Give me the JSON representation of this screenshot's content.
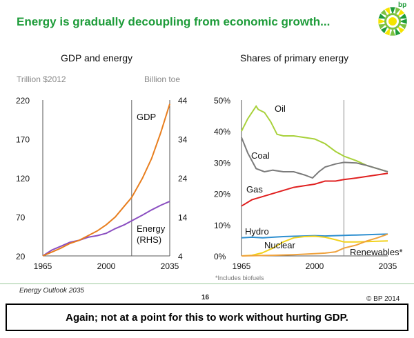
{
  "header": {
    "title": "Energy is gradually decoupling from economic growth...",
    "logo_text": "bp",
    "logo_icon": "bp-helios-icon"
  },
  "colors": {
    "green": "#1e9c3a",
    "gdp": "#e87e1e",
    "energy": "#8b4fc1",
    "oil": "#a8d13a",
    "coal": "#7b7b7b",
    "gas": "#e02020",
    "hydro": "#2e8fd0",
    "nuclear": "#f2d21c",
    "renewables": "#f0a23c"
  },
  "chart_data": [
    {
      "type": "line",
      "title": "GDP and energy",
      "left_axis_unit": "Trillion $2012",
      "right_axis_unit": "Billion toe",
      "x_ticks": [
        "1965",
        "2000",
        "2035"
      ],
      "xlim": [
        1965,
        2035
      ],
      "ylim_left": [
        20,
        220
      ],
      "ylim_right": [
        4,
        44
      ],
      "y_ticks_left": [
        "20",
        "70",
        "120",
        "170",
        "220"
      ],
      "y_ticks_right": [
        "4",
        "14",
        "24",
        "34",
        "44"
      ],
      "vline_x": 2014,
      "series": [
        {
          "name": "GDP",
          "axis": "left",
          "x": [
            1965,
            1970,
            1975,
            1980,
            1985,
            1990,
            1995,
            2000,
            2005,
            2010,
            2014,
            2020,
            2025,
            2030,
            2035
          ],
          "values": [
            20,
            25,
            30,
            36,
            40,
            46,
            52,
            60,
            70,
            84,
            95,
            120,
            145,
            178,
            215
          ]
        },
        {
          "name": "Energy (RHS)",
          "axis": "right",
          "x": [
            1965,
            1970,
            1975,
            1980,
            1985,
            1990,
            1995,
            2000,
            2005,
            2010,
            2014,
            2020,
            2025,
            2030,
            2035
          ],
          "values": [
            4,
            5.5,
            6.5,
            7.5,
            8,
            8.8,
            9.2,
            9.8,
            11,
            12,
            13,
            14.5,
            15.8,
            17,
            18
          ]
        }
      ],
      "labels": {
        "gdp": "GDP",
        "energy_line1": "Energy",
        "energy_line2": "(RHS)"
      }
    },
    {
      "type": "line",
      "title": "Shares of primary energy",
      "x_ticks": [
        "1965",
        "2000",
        "2035"
      ],
      "xlim": [
        1965,
        2035
      ],
      "ylim": [
        0,
        50
      ],
      "y_ticks": [
        "0%",
        "10%",
        "20%",
        "30%",
        "40%",
        "50%"
      ],
      "vline_x": 2014,
      "series": [
        {
          "name": "Oil",
          "x": [
            1965,
            1968,
            1972,
            1973,
            1976,
            1979,
            1982,
            1985,
            1990,
            1995,
            2000,
            2005,
            2010,
            2014,
            2020,
            2025,
            2030,
            2035
          ],
          "values": [
            40,
            44,
            48,
            47,
            46,
            43,
            39,
            38.5,
            38.5,
            38,
            37.5,
            36,
            33.5,
            32,
            30.5,
            29,
            28,
            27
          ]
        },
        {
          "name": "Coal",
          "x": [
            1965,
            1968,
            1972,
            1976,
            1980,
            1985,
            1990,
            1995,
            1999,
            2002,
            2005,
            2010,
            2014,
            2020,
            2025,
            2030,
            2035
          ],
          "values": [
            38,
            33,
            28,
            27,
            27.5,
            27,
            27,
            26,
            25,
            27,
            28.5,
            29.5,
            30,
            29.8,
            29,
            28,
            27
          ]
        },
        {
          "name": "Gas",
          "x": [
            1965,
            1970,
            1975,
            1980,
            1985,
            1990,
            1995,
            2000,
            2005,
            2010,
            2014,
            2020,
            2025,
            2030,
            2035
          ],
          "values": [
            16,
            18,
            19,
            20,
            21,
            22,
            22.5,
            23,
            24,
            24,
            24.5,
            25,
            25.5,
            26,
            26.5
          ]
        },
        {
          "name": "Hydro",
          "x": [
            1965,
            1970,
            1975,
            1980,
            1985,
            1990,
            1995,
            2000,
            2005,
            2010,
            2014,
            2020,
            2025,
            2030,
            2035
          ],
          "values": [
            5.8,
            6,
            5.8,
            6,
            6.2,
            6.3,
            6.4,
            6.5,
            6.4,
            6.5,
            6.6,
            6.7,
            6.8,
            6.9,
            7
          ]
        },
        {
          "name": "Nuclear",
          "x": [
            1965,
            1970,
            1975,
            1980,
            1985,
            1990,
            1995,
            2000,
            2005,
            2010,
            2014,
            2020,
            2025,
            2030,
            2035
          ],
          "values": [
            0,
            0.2,
            1,
            2.5,
            4.5,
            5.8,
            6.2,
            6.3,
            6,
            5.2,
            4.5,
            4.5,
            4.6,
            4.7,
            4.8
          ]
        },
        {
          "name": "Renewables*",
          "x": [
            1965,
            1980,
            1990,
            2000,
            2005,
            2010,
            2014,
            2020,
            2025,
            2030,
            2035
          ],
          "values": [
            0,
            0.2,
            0.4,
            0.7,
            0.9,
            1.3,
            2.5,
            3.5,
            4.8,
            5.8,
            7
          ]
        }
      ],
      "labels": {
        "oil": "Oil",
        "coal": "Coal",
        "gas": "Gas",
        "hydro": "Hydro",
        "nuclear": "Nuclear",
        "renewables": "Renewables*"
      },
      "footnote": "*Includes biofuels"
    }
  ],
  "footer": {
    "left": "Energy Outlook 2035",
    "page": "16",
    "right": "© BP 2014"
  },
  "caption": "Again; not at a point for this to work without hurting GDP."
}
